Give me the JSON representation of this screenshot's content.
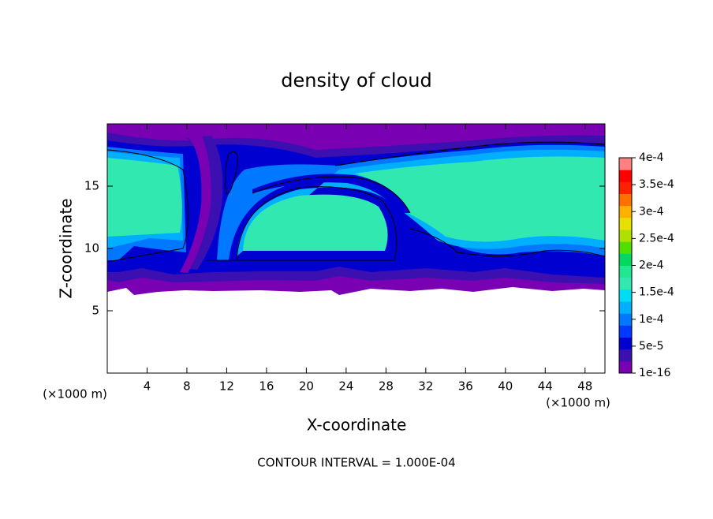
{
  "chart_data": {
    "type": "contour",
    "title": "density of cloud",
    "x_label": "X-coordinate",
    "y_label": "Z-coordinate",
    "y_unit": "(×1000 m)",
    "x_unit": "(×1000 m)",
    "annotation": "CONTOUR INTERVAL = 1.000E-04",
    "xlim": [
      0,
      50
    ],
    "ylim": [
      0,
      20
    ],
    "xticks": [
      4,
      8,
      12,
      16,
      20,
      24,
      28,
      32,
      36,
      40,
      44,
      48
    ],
    "yticks": [
      5,
      10,
      15
    ],
    "colorbar": {
      "lim": [
        1e-16,
        0.0004
      ],
      "ticks": [
        {
          "value": 1e-16,
          "label": "1e-16"
        },
        {
          "value": 5e-05,
          "label": "5e-5"
        },
        {
          "value": 0.0001,
          "label": "1e-4"
        },
        {
          "value": 0.00015,
          "label": "1.5e-4"
        },
        {
          "value": 0.0002,
          "label": "2e-4"
        },
        {
          "value": 0.00025,
          "label": "2.5e-4"
        },
        {
          "value": 0.0003,
          "label": "3e-4"
        },
        {
          "value": 0.00035,
          "label": "3.5e-4"
        },
        {
          "value": 0.0004,
          "label": "4e-4"
        }
      ],
      "colors": [
        "#7a00b4",
        "#3c10b0",
        "#0000d0",
        "#0038ff",
        "#0078ff",
        "#00b0ff",
        "#00dcf4",
        "#30e8b0",
        "#20e890",
        "#00d860",
        "#50e000",
        "#b0e000",
        "#e8e000",
        "#ffb000",
        "#ff7000",
        "#ff2000",
        "#ff0000",
        "#ff8080"
      ]
    }
  }
}
